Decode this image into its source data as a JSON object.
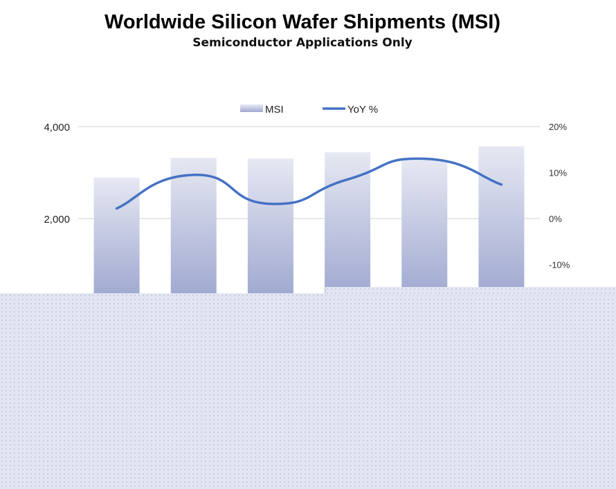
{
  "header": {
    "title": "Worldwide Silicon Wafer Shipments (MSI)",
    "subtitle": "Semiconductor Applications Only"
  },
  "chart_data": {
    "type": "bar",
    "title": "Worldwide Silicon Wafer Shipments (MSI)",
    "subtitle": "Semiconductor Applications Only",
    "categories": [
      "",
      "",
      "",
      "",
      "",
      ""
    ],
    "series": [
      {
        "name": "MSI",
        "type": "bar",
        "axis": "left",
        "values": [
          2890,
          3320,
          3305,
          3440,
          3270,
          3570
        ]
      },
      {
        "name": "YoY %",
        "type": "line",
        "axis": "right",
        "smooth": true,
        "values": [
          2.2,
          9.5,
          3.2,
          8.5,
          13.0,
          7.4
        ]
      }
    ],
    "y_left": {
      "ticks": [
        "2,000",
        "4,000"
      ],
      "tick_values": [
        2000,
        4000
      ]
    },
    "y_right": {
      "ticks": [
        "20%",
        "10%",
        "0%",
        "-10%"
      ],
      "tick_values": [
        20,
        10,
        0,
        -10
      ]
    },
    "legend": {
      "placement": "top-center",
      "entries": [
        "MSI",
        "YoY %"
      ]
    },
    "grid": true,
    "colors": {
      "bar_top": "#e6e8f2",
      "bar_bottom": "#9fa8d0",
      "line": "#4472c4",
      "grid": "#d9d9d9"
    }
  }
}
